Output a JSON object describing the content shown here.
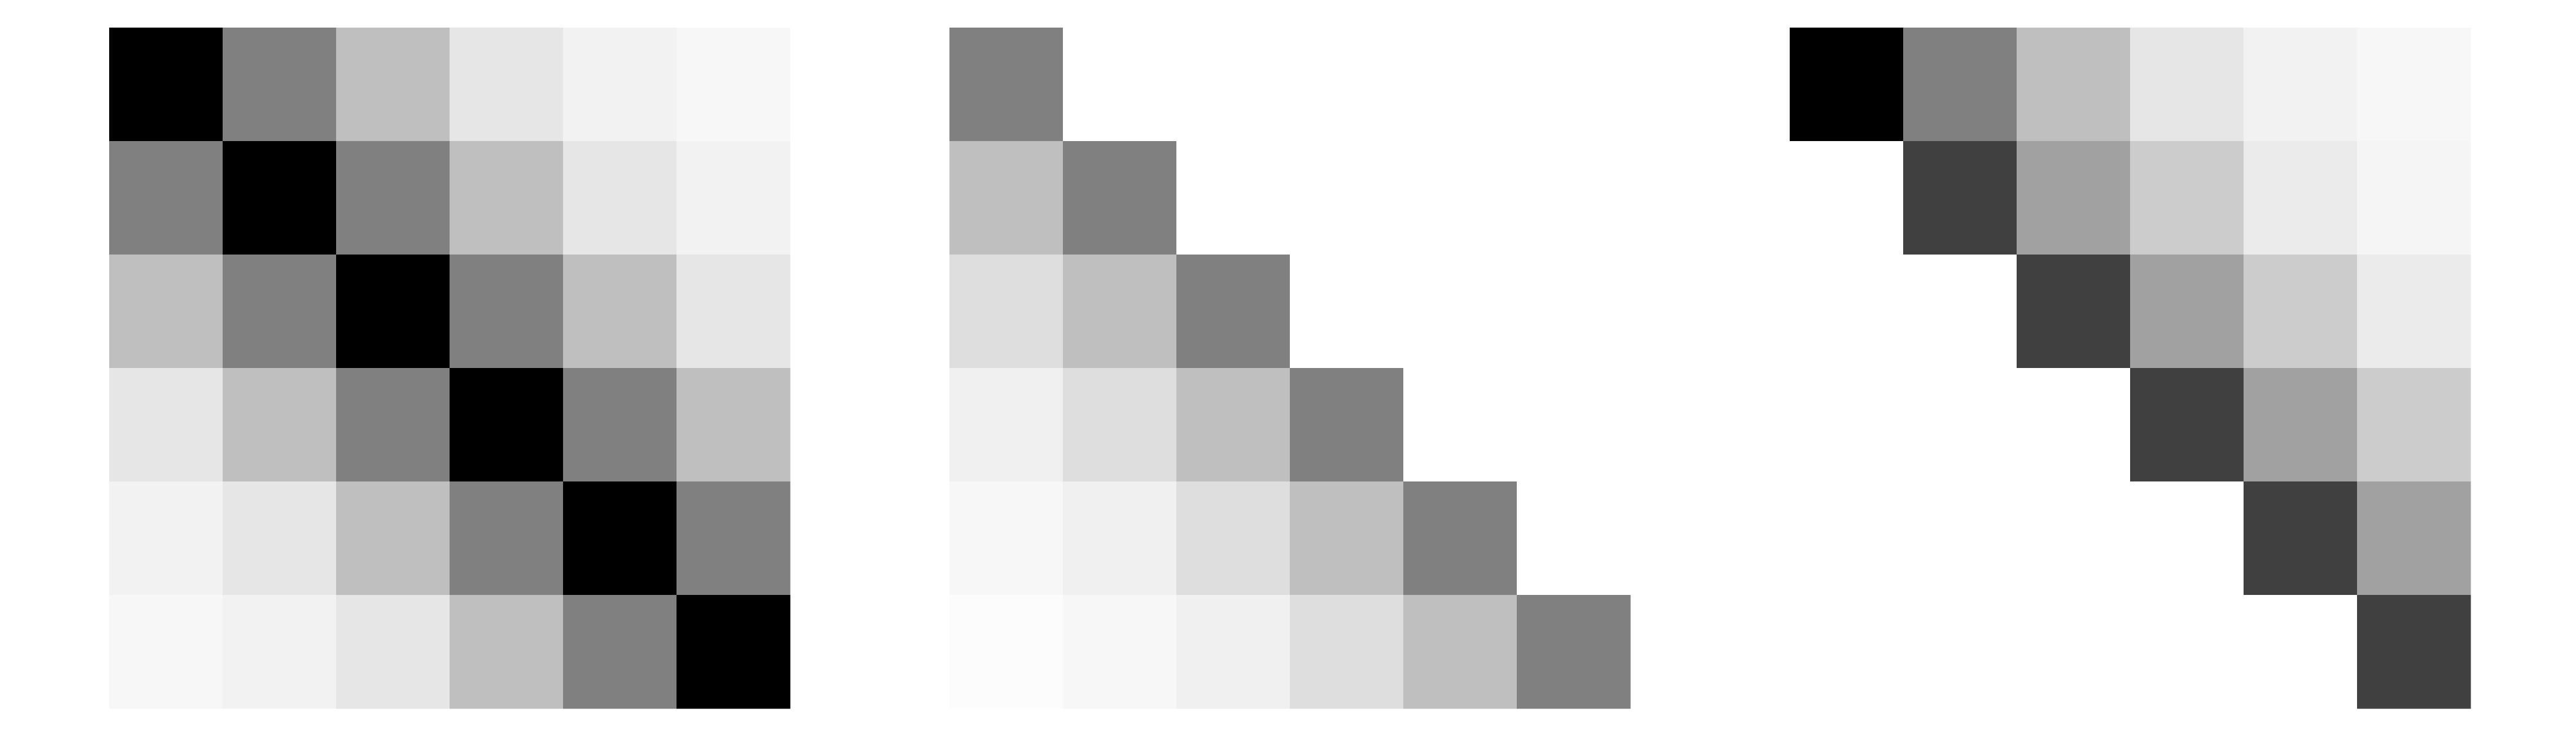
{
  "chart_data": [
    {
      "type": "heatmap",
      "title": "",
      "xlabel": "",
      "ylabel": "",
      "colormap": "greys",
      "value_range": [
        0,
        1
      ],
      "grid": false,
      "ticks": false,
      "values": [
        [
          1.0,
          0.5,
          0.25,
          0.1,
          0.05,
          0.03
        ],
        [
          0.5,
          1.0,
          0.5,
          0.25,
          0.1,
          0.05
        ],
        [
          0.25,
          0.5,
          1.0,
          0.5,
          0.25,
          0.1
        ],
        [
          0.1,
          0.25,
          0.5,
          1.0,
          0.5,
          0.25
        ],
        [
          0.05,
          0.1,
          0.25,
          0.5,
          1.0,
          0.5
        ],
        [
          0.03,
          0.05,
          0.1,
          0.25,
          0.5,
          1.0
        ]
      ]
    },
    {
      "type": "heatmap",
      "title": "",
      "xlabel": "",
      "ylabel": "",
      "colormap": "greys",
      "value_range": [
        0,
        1
      ],
      "grid": false,
      "ticks": false,
      "values": [
        [
          0.5,
          0.0,
          0.0,
          0.0,
          0.0,
          0.0
        ],
        [
          0.25,
          0.5,
          0.0,
          0.0,
          0.0,
          0.0
        ],
        [
          0.13,
          0.25,
          0.5,
          0.0,
          0.0,
          0.0
        ],
        [
          0.06,
          0.13,
          0.25,
          0.5,
          0.0,
          0.0
        ],
        [
          0.03,
          0.06,
          0.13,
          0.25,
          0.5,
          0.0
        ],
        [
          0.01,
          0.03,
          0.06,
          0.13,
          0.25,
          0.5
        ]
      ]
    },
    {
      "type": "heatmap",
      "title": "",
      "xlabel": "",
      "ylabel": "",
      "colormap": "greys",
      "value_range": [
        0,
        1
      ],
      "grid": false,
      "ticks": false,
      "values": [
        [
          1.0,
          0.5,
          0.25,
          0.1,
          0.05,
          0.03
        ],
        [
          0.0,
          0.75,
          0.37,
          0.2,
          0.08,
          0.04
        ],
        [
          0.0,
          0.0,
          0.75,
          0.37,
          0.2,
          0.08
        ],
        [
          0.0,
          0.0,
          0.0,
          0.75,
          0.37,
          0.2
        ],
        [
          0.0,
          0.0,
          0.0,
          0.0,
          0.75,
          0.37
        ],
        [
          0.0,
          0.0,
          0.0,
          0.0,
          0.0,
          0.75
        ]
      ]
    }
  ]
}
